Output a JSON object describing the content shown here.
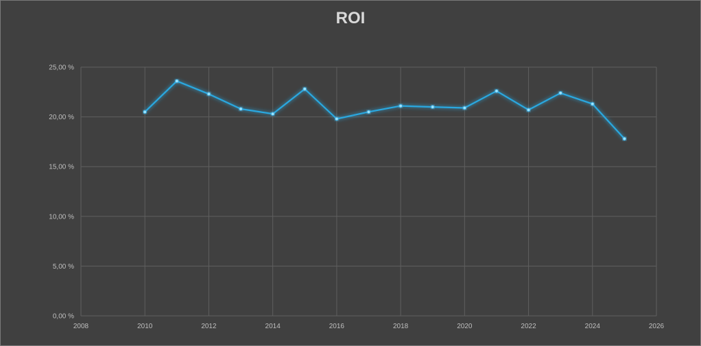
{
  "chart_data": {
    "type": "scatter",
    "title": "ROI",
    "xlabel": "",
    "ylabel": "",
    "xlim": [
      2008,
      2026
    ],
    "ylim": [
      0,
      25
    ],
    "x_ticks": [
      2008,
      2010,
      2012,
      2014,
      2016,
      2018,
      2020,
      2022,
      2024,
      2026
    ],
    "x_tick_labels": [
      "2008",
      "2010",
      "2012",
      "2014",
      "2016",
      "2018",
      "2020",
      "2022",
      "2024",
      "2026"
    ],
    "y_ticks": [
      0,
      5,
      10,
      15,
      20,
      25
    ],
    "y_tick_labels": [
      "0,00 %",
      "5,00 %",
      "10,00 %",
      "15,00 %",
      "20,00 %",
      "25,00 %"
    ],
    "grid": true,
    "legend": "none",
    "line_color": "#29a8e0",
    "series": [
      {
        "x": [
          2010,
          2011,
          2012,
          2013,
          2014,
          2015,
          2016,
          2017,
          2018,
          2019,
          2020,
          2021,
          2022,
          2023,
          2024,
          2025
        ],
        "y": [
          20.5,
          23.6,
          22.3,
          20.8,
          20.3,
          22.8,
          19.8,
          20.5,
          21.1,
          21.0,
          20.9,
          22.6,
          20.7,
          22.4,
          21.3,
          17.8
        ]
      }
    ]
  }
}
